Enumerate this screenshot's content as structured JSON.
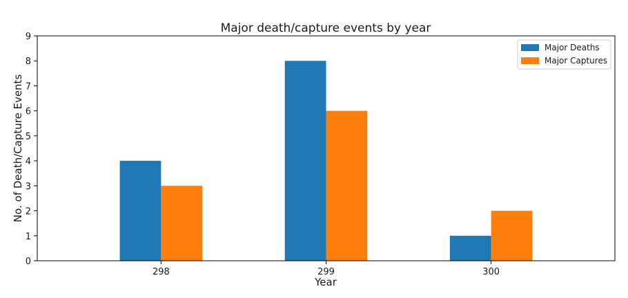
{
  "chart_data": {
    "type": "bar",
    "title": "Major death/capture events by year",
    "xlabel": "Year",
    "ylabel": "No. of Death/Capture Events",
    "categories": [
      "298",
      "299",
      "300"
    ],
    "series": [
      {
        "name": "Major Deaths",
        "values": [
          4,
          8,
          1
        ],
        "color": "#1f77b4"
      },
      {
        "name": "Major Captures",
        "values": [
          3,
          6,
          2
        ],
        "color": "#ff7f0e"
      }
    ],
    "ylim": [
      0,
      9
    ],
    "yticks": [
      "0",
      "1",
      "2",
      "3",
      "4",
      "5",
      "6",
      "7",
      "8",
      "9"
    ],
    "grid": false,
    "legend_position": "top-right"
  }
}
